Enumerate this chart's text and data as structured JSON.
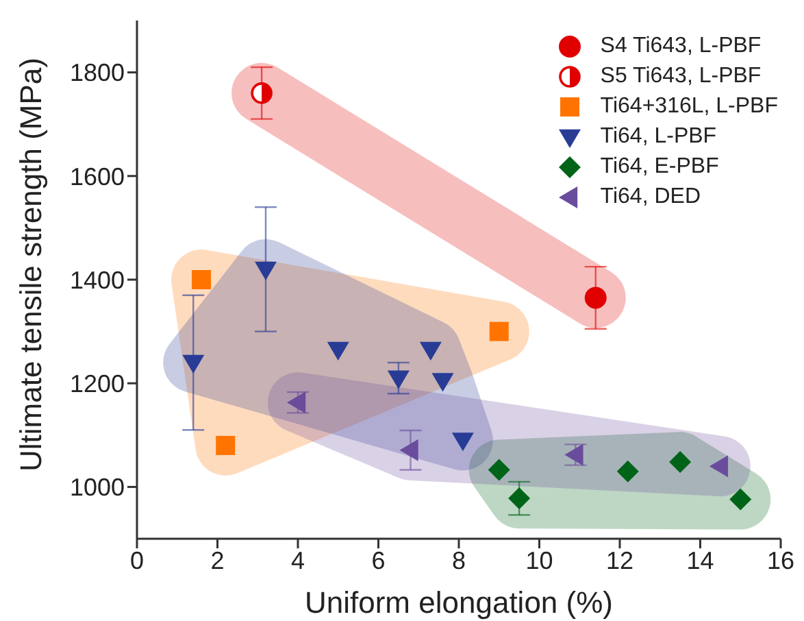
{
  "chart_data": {
    "type": "scatter",
    "xlabel": "Uniform elongation (%)",
    "ylabel": "Ultimate tensile strength (MPa)",
    "xlim": [
      0,
      16
    ],
    "xticks": [
      0,
      2,
      4,
      6,
      8,
      10,
      12,
      14,
      16
    ],
    "ylim": [
      900,
      1900
    ],
    "yticks": [
      1000,
      1200,
      1400,
      1600,
      1800
    ],
    "legend": "top right",
    "series": [
      {
        "name": "S4 Ti643, L-PBF",
        "color": "#e00000",
        "marker": "circle",
        "x": [
          11.4
        ],
        "values": [
          1365
        ],
        "errors": [
          60
        ]
      },
      {
        "name": "S5 Ti643, L-PBF",
        "color": "#e00000",
        "marker": "half-circle",
        "x": [
          3.1
        ],
        "values": [
          1760
        ],
        "errors": [
          50
        ]
      },
      {
        "name": "Ti64+316L, L-PBF",
        "color": "#ff7400",
        "marker": "square",
        "x": [
          1.6,
          2.2,
          9.0
        ],
        "values": [
          1400,
          1080,
          1300
        ]
      },
      {
        "name": "Ti64, L-PBF",
        "color": "#283c96",
        "marker": "triangle-down",
        "x": [
          1.4,
          3.2,
          5.0,
          6.5,
          7.3,
          7.6,
          8.1
        ],
        "values": [
          1240,
          1420,
          1265,
          1210,
          1265,
          1205,
          1090
        ],
        "errors": [
          130,
          120,
          null,
          30,
          null,
          null,
          null
        ]
      },
      {
        "name": "Ti64, E-PBF",
        "color": "#006418",
        "marker": "diamond",
        "x": [
          9.0,
          9.5,
          12.2,
          13.5,
          15.0
        ],
        "values": [
          1033,
          978,
          1030,
          1048,
          976
        ],
        "errors": [
          null,
          32,
          null,
          null,
          null
        ]
      },
      {
        "name": "Ti64, DED",
        "color": "#6a4c9c",
        "marker": "triangle-left",
        "x": [
          4.0,
          6.8,
          10.9,
          14.5
        ],
        "values": [
          1163,
          1071,
          1062,
          1040
        ],
        "errors": [
          20,
          38,
          20,
          null
        ]
      }
    ]
  }
}
